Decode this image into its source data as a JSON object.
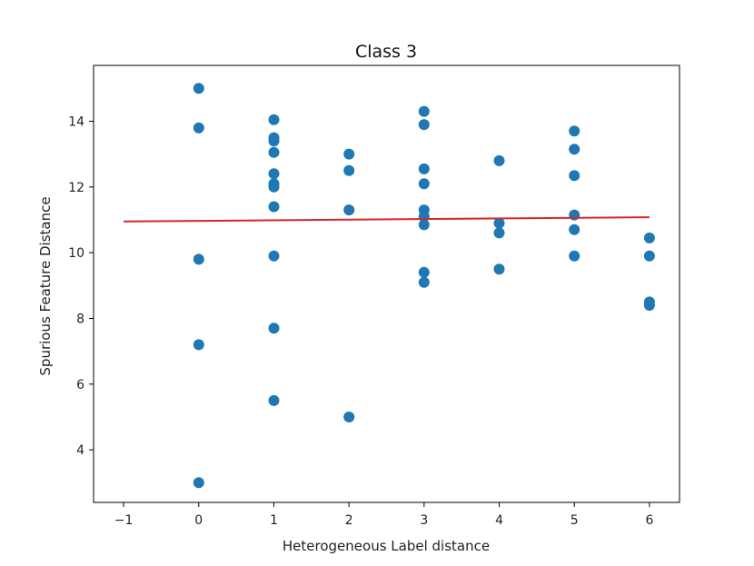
{
  "chart_data": {
    "type": "scatter",
    "title": "Class 3",
    "xlabel": "Heterogeneous Label distance",
    "ylabel": "Spurious Feature Distance",
    "xlim": [
      -1.4,
      6.4
    ],
    "ylim": [
      2.4,
      15.7
    ],
    "xticks": [
      -1,
      0,
      1,
      2,
      3,
      4,
      5,
      6
    ],
    "xtick_labels": [
      "−1",
      "0",
      "1",
      "2",
      "3",
      "4",
      "5",
      "6"
    ],
    "yticks": [
      4,
      6,
      8,
      10,
      12,
      14
    ],
    "ytick_labels": [
      "4",
      "6",
      "8",
      "10",
      "12",
      "14"
    ],
    "grid": false,
    "legend": "none",
    "colors": {
      "points": "#1f77b4",
      "trend_line": "#d62728",
      "axes": "#000000"
    },
    "points": [
      {
        "x": 0,
        "y": 15.0
      },
      {
        "x": 0,
        "y": 13.8
      },
      {
        "x": 0,
        "y": 9.8
      },
      {
        "x": 0,
        "y": 7.2
      },
      {
        "x": 0,
        "y": 3.0
      },
      {
        "x": 1,
        "y": 14.05
      },
      {
        "x": 1,
        "y": 13.5
      },
      {
        "x": 1,
        "y": 13.4
      },
      {
        "x": 1,
        "y": 13.05
      },
      {
        "x": 1,
        "y": 12.4
      },
      {
        "x": 1,
        "y": 12.1
      },
      {
        "x": 1,
        "y": 12.0
      },
      {
        "x": 1,
        "y": 11.4
      },
      {
        "x": 1,
        "y": 9.9
      },
      {
        "x": 1,
        "y": 7.7
      },
      {
        "x": 1,
        "y": 5.5
      },
      {
        "x": 2,
        "y": 13.0
      },
      {
        "x": 2,
        "y": 12.5
      },
      {
        "x": 2,
        "y": 11.3
      },
      {
        "x": 2,
        "y": 5.0
      },
      {
        "x": 3,
        "y": 14.3
      },
      {
        "x": 3,
        "y": 13.9
      },
      {
        "x": 3,
        "y": 12.55
      },
      {
        "x": 3,
        "y": 12.1
      },
      {
        "x": 3,
        "y": 11.3
      },
      {
        "x": 3,
        "y": 11.1
      },
      {
        "x": 3,
        "y": 10.85
      },
      {
        "x": 3,
        "y": 9.4
      },
      {
        "x": 3,
        "y": 9.1
      },
      {
        "x": 4,
        "y": 12.8
      },
      {
        "x": 4,
        "y": 10.9
      },
      {
        "x": 4,
        "y": 10.6
      },
      {
        "x": 4,
        "y": 9.5
      },
      {
        "x": 5,
        "y": 13.7
      },
      {
        "x": 5,
        "y": 13.15
      },
      {
        "x": 5,
        "y": 12.35
      },
      {
        "x": 5,
        "y": 11.15
      },
      {
        "x": 5,
        "y": 10.7
      },
      {
        "x": 5,
        "y": 9.9
      },
      {
        "x": 6,
        "y": 10.45
      },
      {
        "x": 6,
        "y": 9.9
      },
      {
        "x": 6,
        "y": 8.5
      },
      {
        "x": 6,
        "y": 8.4
      }
    ],
    "trend_line": {
      "x": [
        -1,
        6
      ],
      "y": [
        10.95,
        11.08
      ]
    }
  }
}
